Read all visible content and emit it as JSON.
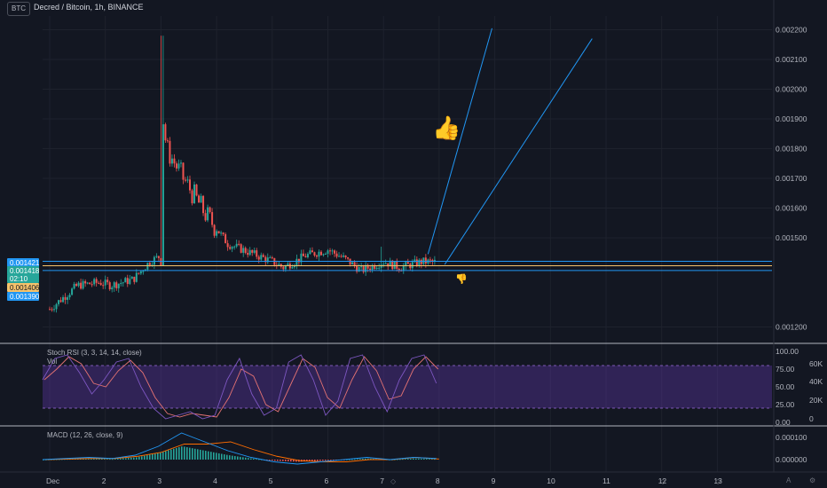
{
  "header": {
    "symbol_badge": "BTC",
    "title": "Decred / Bitcoin, 1h, BINANCE"
  },
  "price_axis": {
    "labels": [
      "0.002200",
      "0.002100",
      "0.002000",
      "0.001900",
      "0.001800",
      "0.001700",
      "0.001600",
      "0.001500",
      "0.001200"
    ]
  },
  "price_tags": [
    {
      "text": "0.001421",
      "bg": "#2196f3",
      "fg": "#ffffff"
    },
    {
      "text": "0.001418",
      "bg": "#26a69a",
      "fg": "#ffffff"
    },
    {
      "text": "02:10",
      "bg": "#26a69a",
      "fg": "#ffffff"
    },
    {
      "text": "0.001406",
      "bg": "#f5c26b",
      "fg": "#131722"
    },
    {
      "text": "0.001390",
      "bg": "#2196f3",
      "fg": "#ffffff"
    }
  ],
  "x_axis": {
    "labels": [
      "Dec",
      "2",
      "3",
      "4",
      "5",
      "6",
      "7",
      "8",
      "9",
      "10",
      "11",
      "12",
      "13"
    ]
  },
  "stoch": {
    "title": "Stoch RSI (3, 3, 14, 14, close)",
    "vol_label": "Vol",
    "axis_labels": [
      "100.00",
      "75.00",
      "50.00",
      "25.00",
      "0.00"
    ],
    "vol_axis_labels": [
      "60K",
      "40K",
      "20K",
      "0"
    ]
  },
  "macd": {
    "title": "MACD (12, 26, close, 9)",
    "axis_labels": [
      "0.000100",
      "0.000000"
    ]
  },
  "icons": {
    "thumbs_up": "thumbs-up-icon",
    "thumbs_down": "thumbs-down-icon",
    "settings": "gear-icon",
    "auto_scale": "auto-scale-icon",
    "time_marker": "time-marker-icon"
  },
  "colors": {
    "up": "#26a69a",
    "down": "#ef5350",
    "trend": "#2196f3",
    "level_yellow": "#f5c26b",
    "stoch_band": "#673ab7",
    "stoch_k": "#7e57c2",
    "stoch_d": "#e57373",
    "macd_line": "#2196f3",
    "signal_line": "#ff6d00"
  },
  "chart_data": {
    "type": "candlestick",
    "title": "Decred / Bitcoin, 1h, BINANCE",
    "x_labels": [
      "Dec",
      "2",
      "3",
      "4",
      "5",
      "6",
      "7",
      "8",
      "9",
      "10",
      "11",
      "12",
      "13"
    ],
    "ylim": [
      0.00115,
      0.00225
    ],
    "y_ticks": [
      0.0012,
      0.0015,
      0.0016,
      0.0017,
      0.0018,
      0.0019,
      0.002,
      0.0021,
      0.0022
    ],
    "close_path": [
      {
        "x": 0.0,
        "y": 0.00126
      },
      {
        "x": 0.5,
        "y": 0.00134
      },
      {
        "x": 0.9,
        "y": 0.00135
      },
      {
        "x": 1.1,
        "y": 0.00134
      },
      {
        "x": 1.5,
        "y": 0.00136
      },
      {
        "x": 1.8,
        "y": 0.00142
      },
      {
        "x": 2.0,
        "y": 0.00144
      },
      {
        "x": 2.02,
        "y": 0.00193
      },
      {
        "x": 2.1,
        "y": 0.0018
      },
      {
        "x": 2.4,
        "y": 0.0017
      },
      {
        "x": 2.8,
        "y": 0.00158
      },
      {
        "x": 3.2,
        "y": 0.00148
      },
      {
        "x": 3.6,
        "y": 0.00145
      },
      {
        "x": 4.0,
        "y": 0.00142
      },
      {
        "x": 4.2,
        "y": 0.0014
      },
      {
        "x": 4.6,
        "y": 0.00144
      },
      {
        "x": 5.0,
        "y": 0.00146
      },
      {
        "x": 5.3,
        "y": 0.00143
      },
      {
        "x": 5.6,
        "y": 0.00139
      },
      {
        "x": 6.0,
        "y": 0.00142
      },
      {
        "x": 6.3,
        "y": 0.0014
      },
      {
        "x": 6.7,
        "y": 0.00142
      },
      {
        "x": 6.95,
        "y": 0.001418
      }
    ],
    "trendlines": [
      {
        "x1": 6.8,
        "y1": 0.001445,
        "x2": 7.95,
        "y2": 0.002205
      },
      {
        "x1": 7.1,
        "y1": 0.00141,
        "x2": 9.75,
        "y2": 0.00217
      }
    ],
    "horizontal_levels": [
      0.001421,
      0.001406,
      0.00139
    ],
    "stoch_rsi": {
      "k_path": [
        60,
        90,
        95,
        70,
        40,
        60,
        85,
        90,
        50,
        20,
        5,
        10,
        15,
        5,
        10,
        60,
        90,
        40,
        10,
        20,
        85,
        95,
        60,
        10,
        30,
        90,
        95,
        50,
        15,
        60,
        90,
        95,
        55
      ],
      "upper": 80,
      "lower": 20
    },
    "macd": {
      "macd_path": [
        0,
        5e-06,
        1e-05,
        5e-06,
        2e-05,
        6e-05,
        0.00012,
        8e-05,
        4e-05,
        1e-05,
        -1e-05,
        -2e-05,
        -1e-05,
        0,
        1e-05,
        0,
        1e-05,
        5e-06
      ]
    }
  }
}
